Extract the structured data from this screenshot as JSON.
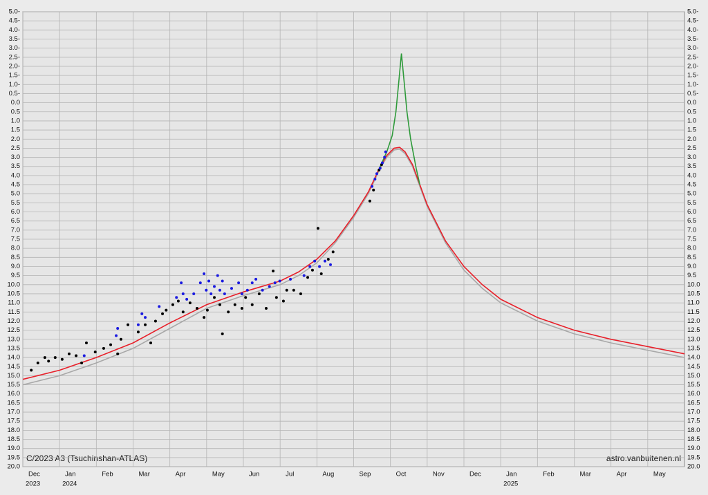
{
  "chart_data": {
    "type": "line",
    "title": "C/2023 A3 (Tsuchinshan-ATLAS)",
    "credit": "astro.vanbuitenen.nl",
    "grid": true,
    "inverted_y": true,
    "xlim": [
      0,
      18
    ],
    "xticks": [
      {
        "value": 0,
        "label": "Dec"
      },
      {
        "value": 1,
        "label": "Jan"
      },
      {
        "value": 2,
        "label": "Feb"
      },
      {
        "value": 3,
        "label": "Mar"
      },
      {
        "value": 4,
        "label": "Apr"
      },
      {
        "value": 5,
        "label": "May"
      },
      {
        "value": 6,
        "label": "Jun"
      },
      {
        "value": 7,
        "label": "Jul"
      },
      {
        "value": 8,
        "label": "Aug"
      },
      {
        "value": 9,
        "label": "Sep"
      },
      {
        "value": 10,
        "label": "Oct"
      },
      {
        "value": 11,
        "label": "Nov"
      },
      {
        "value": 12,
        "label": "Dec"
      },
      {
        "value": 13,
        "label": "Jan"
      },
      {
        "value": 14,
        "label": "Feb"
      },
      {
        "value": 15,
        "label": "Mar"
      },
      {
        "value": 16,
        "label": "Apr"
      },
      {
        "value": 17,
        "label": "May"
      }
    ],
    "year_labels": [
      {
        "value": 0,
        "label": "2023"
      },
      {
        "value": 1,
        "label": "2024"
      },
      {
        "value": 13,
        "label": "2025"
      }
    ],
    "ylim": [
      -5,
      20
    ],
    "yticks": [
      {
        "value": -5,
        "label": "5.0-"
      },
      {
        "value": -4.5,
        "label": "4.5-"
      },
      {
        "value": -4,
        "label": "4.0-"
      },
      {
        "value": -3.5,
        "label": "3.5-"
      },
      {
        "value": -3,
        "label": "3.0-"
      },
      {
        "value": -2.5,
        "label": "2.5-"
      },
      {
        "value": -2,
        "label": "2.0-"
      },
      {
        "value": -1.5,
        "label": "1.5-"
      },
      {
        "value": -1,
        "label": "1.0-"
      },
      {
        "value": -0.5,
        "label": "0.5-"
      },
      {
        "value": 0,
        "label": "0.0"
      },
      {
        "value": 0.5,
        "label": "0.5"
      },
      {
        "value": 1,
        "label": "1.0"
      },
      {
        "value": 1.5,
        "label": "1.5"
      },
      {
        "value": 2,
        "label": "2.0"
      },
      {
        "value": 2.5,
        "label": "2.5"
      },
      {
        "value": 3,
        "label": "3.0"
      },
      {
        "value": 3.5,
        "label": "3.5"
      },
      {
        "value": 4,
        "label": "4.0"
      },
      {
        "value": 4.5,
        "label": "4.5"
      },
      {
        "value": 5,
        "label": "5.0"
      },
      {
        "value": 5.5,
        "label": "5.5"
      },
      {
        "value": 6,
        "label": "6.0"
      },
      {
        "value": 6.5,
        "label": "6.5"
      },
      {
        "value": 7,
        "label": "7.0"
      },
      {
        "value": 7.5,
        "label": "7.5"
      },
      {
        "value": 8,
        "label": "8.0"
      },
      {
        "value": 8.5,
        "label": "8.5"
      },
      {
        "value": 9,
        "label": "9.0"
      },
      {
        "value": 9.5,
        "label": "9.5"
      },
      {
        "value": 10,
        "label": "10.0"
      },
      {
        "value": 10.5,
        "label": "10.5"
      },
      {
        "value": 11,
        "label": "11.0"
      },
      {
        "value": 11.5,
        "label": "11.5"
      },
      {
        "value": 12,
        "label": "12.0"
      },
      {
        "value": 12.5,
        "label": "12.5"
      },
      {
        "value": 13,
        "label": "13.0"
      },
      {
        "value": 13.5,
        "label": "13.5"
      },
      {
        "value": 14,
        "label": "14.0"
      },
      {
        "value": 14.5,
        "label": "14.5"
      },
      {
        "value": 15,
        "label": "15.0"
      },
      {
        "value": 15.5,
        "label": "15.5"
      },
      {
        "value": 16,
        "label": "16.0"
      },
      {
        "value": 16.5,
        "label": "16.5"
      },
      {
        "value": 17,
        "label": "17.0"
      },
      {
        "value": 17.5,
        "label": "17.5"
      },
      {
        "value": 18,
        "label": "18.0"
      },
      {
        "value": 18.5,
        "label": "18.5"
      },
      {
        "value": 19,
        "label": "19.0"
      },
      {
        "value": 19.5,
        "label": "19.5"
      },
      {
        "value": 20,
        "label": "20.0"
      }
    ],
    "series": [
      {
        "type": "line",
        "color": "#a8a8a8",
        "x": [
          0,
          1,
          2,
          3,
          4,
          5,
          6,
          7,
          7.5,
          8,
          8.5,
          9,
          9.4,
          9.7,
          9.9,
          10.1,
          10.25,
          10.4,
          10.6,
          10.8,
          11,
          11.5,
          12,
          12.5,
          13,
          14,
          15,
          16,
          17,
          18
        ],
        "values": [
          15.5,
          15.0,
          14.3,
          13.5,
          12.4,
          11.3,
          10.6,
          10.0,
          9.5,
          8.8,
          7.7,
          6.3,
          5.0,
          3.7,
          3.0,
          2.6,
          2.55,
          2.8,
          3.5,
          4.6,
          5.7,
          7.7,
          9.2,
          10.2,
          11.0,
          12.0,
          12.7,
          13.2,
          13.6,
          14.0
        ]
      },
      {
        "type": "line",
        "color": "#e8202a",
        "x": [
          0,
          1,
          2,
          3,
          4,
          5,
          6,
          7,
          7.5,
          8,
          8.5,
          9,
          9.4,
          9.7,
          9.9,
          10.1,
          10.25,
          10.4,
          10.6,
          10.8,
          11,
          11.5,
          12,
          12.5,
          13,
          14,
          15,
          16,
          17,
          18
        ],
        "values": [
          15.2,
          14.7,
          14.0,
          13.2,
          12.1,
          11.1,
          10.4,
          9.8,
          9.3,
          8.6,
          7.6,
          6.2,
          4.9,
          3.6,
          2.9,
          2.5,
          2.45,
          2.7,
          3.4,
          4.5,
          5.6,
          7.6,
          9.0,
          10.0,
          10.8,
          11.8,
          12.5,
          13.0,
          13.4,
          13.8
        ]
      },
      {
        "type": "line",
        "color": "#2e9a3a",
        "x": [
          9.7,
          9.9,
          10.05,
          10.15,
          10.22,
          10.3,
          10.38,
          10.45,
          10.55,
          10.7,
          10.8
        ],
        "values": [
          3.6,
          2.7,
          1.8,
          0.5,
          -1.0,
          -2.7,
          -1.0,
          0.5,
          2.0,
          3.6,
          4.5
        ]
      },
      {
        "type": "scatter",
        "color": "#000000",
        "x": [
          0.23,
          0.41,
          0.6,
          0.7,
          0.88,
          1.07,
          1.26,
          1.45,
          1.6,
          1.73,
          1.97,
          2.2,
          2.39,
          2.58,
          2.67,
          2.86,
          3.14,
          3.33,
          3.48,
          3.61,
          3.8,
          3.9,
          4.08,
          4.23,
          4.36,
          4.55,
          4.74,
          4.93,
          5.02,
          5.21,
          5.36,
          5.43,
          5.59,
          5.77,
          5.96,
          6.06,
          6.24,
          6.43,
          6.62,
          6.81,
          6.9,
          7.09,
          7.18,
          7.37,
          7.56,
          7.75,
          7.88,
          8.03,
          8.12,
          8.31,
          8.44,
          9.44,
          9.54,
          9.69,
          9.76
        ],
        "values": [
          14.7,
          14.3,
          14.0,
          14.2,
          14.0,
          14.1,
          13.8,
          13.9,
          14.3,
          13.2,
          13.7,
          13.5,
          13.3,
          13.8,
          13.0,
          12.2,
          12.6,
          12.2,
          13.2,
          12.0,
          11.6,
          11.4,
          11.1,
          10.9,
          11.5,
          11.0,
          11.3,
          11.8,
          11.4,
          10.7,
          11.1,
          12.7,
          11.5,
          11.1,
          11.3,
          10.7,
          11.1,
          10.5,
          11.3,
          9.25,
          10.7,
          10.9,
          10.3,
          10.3,
          10.5,
          9.6,
          9.2,
          6.9,
          9.4,
          8.6,
          8.2,
          5.4,
          4.8,
          3.7,
          3.4
        ]
      },
      {
        "type": "scatter",
        "color": "#1a1ae0",
        "x": [
          1.67,
          2.54,
          2.58,
          3.14,
          3.24,
          3.33,
          3.71,
          4.18,
          4.31,
          4.36,
          4.46,
          4.65,
          4.83,
          4.93,
          4.99,
          5.06,
          5.12,
          5.21,
          5.3,
          5.36,
          5.43,
          5.49,
          5.68,
          5.87,
          5.96,
          6.11,
          6.24,
          6.34,
          6.52,
          6.71,
          6.86,
          6.99,
          7.28,
          7.65,
          7.81,
          7.94,
          8.07,
          8.22,
          8.37,
          9.5,
          9.58,
          9.63,
          9.72,
          9.78,
          9.84,
          9.87
        ],
        "values": [
          13.9,
          12.8,
          12.4,
          12.2,
          11.6,
          11.8,
          11.2,
          10.7,
          9.9,
          10.5,
          10.8,
          10.5,
          9.9,
          9.4,
          10.3,
          9.8,
          10.5,
          10.1,
          9.5,
          10.3,
          9.8,
          10.5,
          10.2,
          9.9,
          10.5,
          10.3,
          9.9,
          9.7,
          10.3,
          10.1,
          9.9,
          9.8,
          9.7,
          9.5,
          9.0,
          8.7,
          9.0,
          8.7,
          8.9,
          4.6,
          4.2,
          3.9,
          3.6,
          3.3,
          3.0,
          2.7
        ]
      }
    ]
  }
}
